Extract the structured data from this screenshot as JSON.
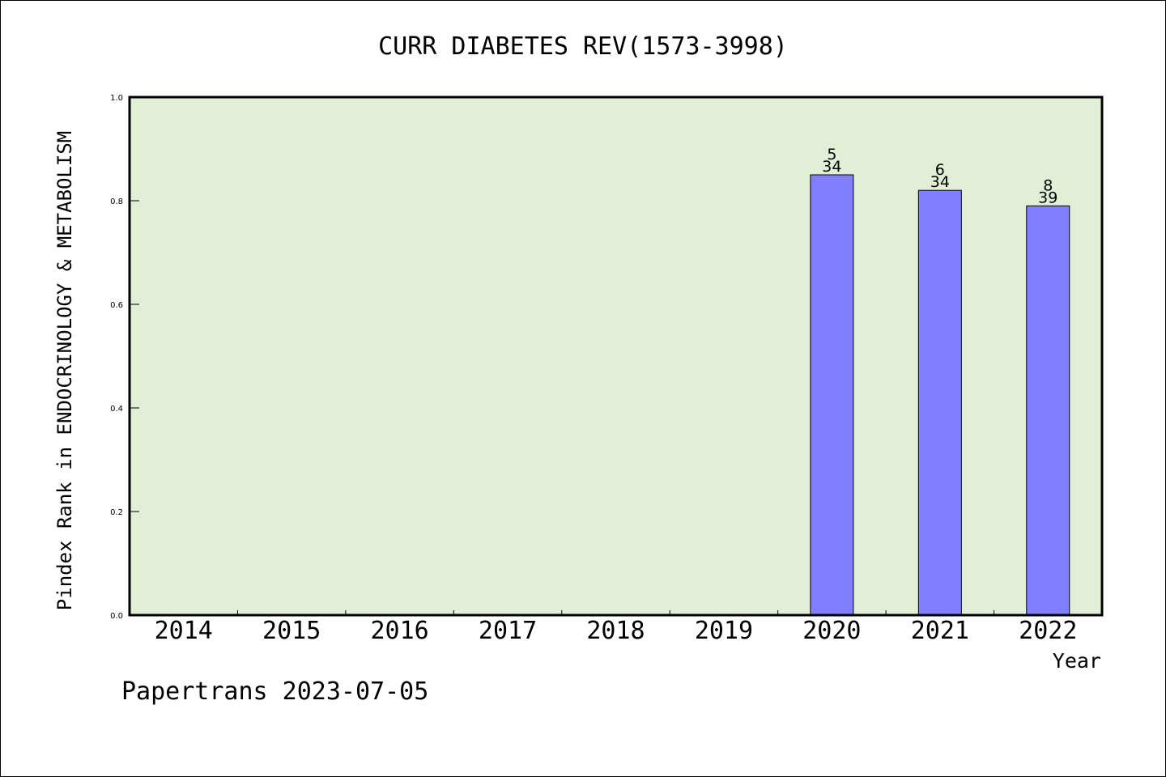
{
  "chart_data": {
    "type": "bar",
    "title": "CURR DIABETES REV(1573-3998)",
    "xlabel": "Year",
    "ylabel": "Pindex Rank in ENDOCRINOLOGY & METABOLISM",
    "ylim": [
      0.0,
      1.0
    ],
    "yticks": [
      "0.0",
      "0.2",
      "0.4",
      "0.6",
      "0.8",
      "1.0"
    ],
    "categories": [
      "2014",
      "2015",
      "2016",
      "2017",
      "2018",
      "2019",
      "2020",
      "2021",
      "2022"
    ],
    "values": [
      null,
      null,
      null,
      null,
      null,
      null,
      0.85,
      0.82,
      0.79
    ],
    "bar_labels": [
      null,
      null,
      null,
      null,
      null,
      null,
      {
        "rank": "5",
        "total": "34"
      },
      {
        "rank": "6",
        "total": "34"
      },
      {
        "rank": "8",
        "total": "39"
      }
    ],
    "grid": false,
    "colors": {
      "plot_background": "#e2efd6",
      "bar_fill": "#8080ff",
      "bar_edge": "#000000"
    }
  },
  "footer": {
    "text": "Papertrans 2023-07-05"
  }
}
